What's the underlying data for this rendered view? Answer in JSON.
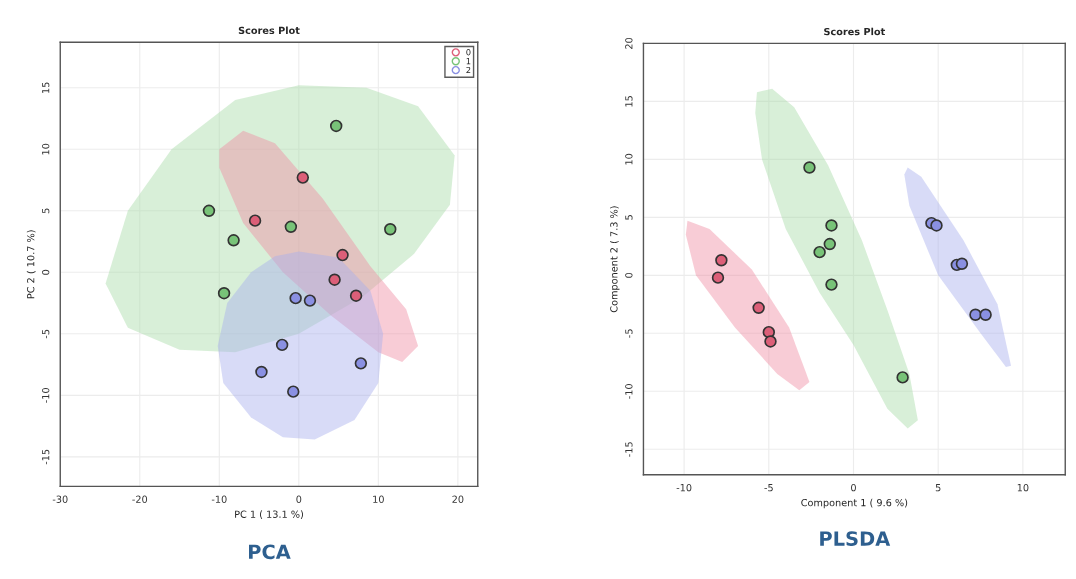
{
  "chart_data": [
    {
      "type": "scatter",
      "title": "Scores Plot",
      "xlabel": "PC 1 ( 13.1 %)",
      "ylabel": "PC 2 ( 10.7 %)",
      "xlim": [
        -30,
        22.5
      ],
      "ylim": [
        -17.4,
        18.7
      ],
      "xticks": [
        -30,
        -20,
        -10,
        0,
        10,
        20
      ],
      "yticks": [
        -15,
        -10,
        -5,
        0,
        5,
        10,
        15
      ],
      "grid": true,
      "legend": "top right",
      "marker": "circle",
      "annotations": [
        "PCA"
      ],
      "series": [
        {
          "type": "area",
          "marker": "none",
          "color": "#a8dca8",
          "x": [
            -24.3,
            -21.5,
            -16,
            -8,
            0,
            8.5,
            15,
            19.6,
            19,
            14.5,
            8,
            0,
            -8,
            -15,
            -21.5
          ],
          "values": [
            -0.9,
            5,
            10,
            14,
            15.2,
            15,
            13.5,
            9.5,
            5.5,
            1.5,
            -2,
            -5,
            -6.5,
            -6.3,
            -4.5
          ]
        },
        {
          "type": "area",
          "marker": "none",
          "color": "#f08fa5",
          "x": [
            -10,
            -7,
            -3,
            3,
            9,
            13.5,
            15,
            13,
            10,
            4,
            -2,
            -7,
            -10
          ],
          "values": [
            10,
            11.5,
            10.5,
            6,
            0.5,
            -3,
            -6,
            -7.3,
            -6.5,
            -3.5,
            0,
            4,
            8.5
          ]
        },
        {
          "type": "area",
          "marker": "none",
          "color": "#a9b0ee",
          "x": [
            0,
            5,
            9,
            10.6,
            10,
            7,
            2,
            -2,
            -6,
            -9.5,
            -10.2,
            -9,
            -6,
            -3
          ],
          "values": [
            1.7,
            1.2,
            -1.5,
            -5,
            -9,
            -12,
            -13.6,
            -13.4,
            -11.8,
            -9,
            -6,
            -2.5,
            0,
            1.3
          ]
        },
        {
          "name": "0",
          "color": "#dc5f78",
          "x": [
            0.5,
            -5.5,
            5.5,
            4.5,
            7.2
          ],
          "values": [
            7.7,
            4.2,
            1.4,
            -0.6,
            -1.9
          ]
        },
        {
          "name": "1",
          "color": "#78c378",
          "x": [
            4.7,
            -11.3,
            -1.0,
            -8.2,
            11.5,
            -9.4
          ],
          "values": [
            11.9,
            5.0,
            3.7,
            2.6,
            3.5,
            -1.7
          ]
        },
        {
          "name": "2",
          "color": "#8a90e2",
          "x": [
            -0.4,
            1.4,
            -2.1,
            -4.7,
            -0.7,
            7.8
          ],
          "values": [
            -2.1,
            -2.3,
            -5.9,
            -8.1,
            -9.7,
            -7.4
          ]
        }
      ]
    },
    {
      "type": "scatter",
      "title": "Scores Plot",
      "xlabel": "Component 1 ( 9.6 %)",
      "ylabel": "Component 2 ( 7.3 %)",
      "xlim": [
        -12.4,
        12.5
      ],
      "ylim": [
        -17.2,
        20
      ],
      "xticks": [
        -10,
        -5,
        0,
        5,
        10
      ],
      "yticks": [
        -15,
        -10,
        -5,
        0,
        5,
        10,
        15,
        20
      ],
      "grid": true,
      "marker": "circle",
      "annotations": [
        "PLSDA"
      ],
      "series": [
        {
          "type": "area",
          "marker": "none",
          "color": "#f08fa5",
          "x": [
            -9.8,
            -8.5,
            -6,
            -3.8,
            -2.6,
            -3.2,
            -4.5,
            -7,
            -9.3,
            -9.9
          ],
          "values": [
            4.7,
            4,
            0.5,
            -4.5,
            -9.2,
            -9.9,
            -8.5,
            -4.5,
            0,
            3.5
          ]
        },
        {
          "type": "area",
          "marker": "none",
          "color": "#a8dca8",
          "x": [
            -5.7,
            -4.8,
            -3.5,
            -1.5,
            0.5,
            2,
            3.3,
            3.8,
            3.2,
            2,
            0,
            -2,
            -4,
            -5.4,
            -5.8
          ],
          "values": [
            15.8,
            16.1,
            14.5,
            9.5,
            3,
            -3,
            -8.5,
            -12.5,
            -13.2,
            -11.5,
            -6,
            -1.5,
            4,
            10,
            14
          ]
        },
        {
          "type": "area",
          "marker": "none",
          "color": "#a9b0ee",
          "x": [
            3.2,
            4,
            6.5,
            8.5,
            9.3,
            9,
            7.5,
            5,
            3.3,
            3
          ],
          "values": [
            9.3,
            8.5,
            3,
            -2.5,
            -7.8,
            -7.9,
            -5,
            0,
            6,
            8.7
          ]
        },
        {
          "color": "#dc5f78",
          "x": [
            -7.8,
            -8.0,
            -5.6,
            -5.0,
            -4.9
          ],
          "values": [
            1.3,
            -0.2,
            -2.8,
            -4.9,
            -5.7
          ]
        },
        {
          "color": "#78c378",
          "x": [
            -2.6,
            -1.3,
            -1.4,
            -2.0,
            -1.3,
            2.9
          ],
          "values": [
            9.3,
            4.3,
            2.7,
            2.0,
            -0.8,
            -8.8
          ]
        },
        {
          "color": "#8a90e2",
          "x": [
            4.6,
            4.9,
            6.1,
            6.4,
            7.2,
            7.8
          ],
          "values": [
            4.5,
            4.3,
            0.9,
            1.0,
            -3.4,
            -3.4
          ]
        }
      ]
    }
  ]
}
